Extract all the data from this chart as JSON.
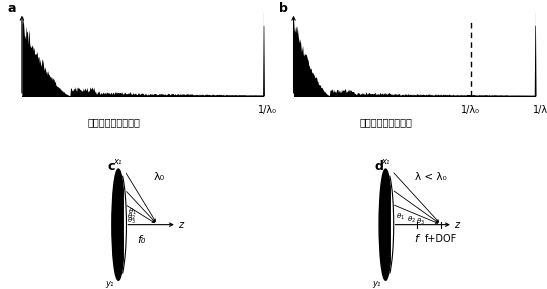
{
  "panel_a_label": "a",
  "panel_b_label": "b",
  "panel_c_label": "c",
  "panel_d_label": "d",
  "label_a_xlabel": "1/λ₀",
  "label_a_caption": "压缩前的归一化频道",
  "label_b_xlabel1": "1/λ₀",
  "label_b_xlabel2": "1/λ",
  "label_b_caption": "压缩后的归一化频道",
  "panel_c_lambda": "λ₀",
  "panel_c_f": "f₀",
  "panel_c_z": "z",
  "panel_c_x1": "x₁",
  "panel_c_y1": "y₁",
  "panel_d_lambda": "λ < λ₀",
  "panel_d_f": "f",
  "panel_d_fdof": "f+DOF",
  "panel_d_z": "z",
  "panel_d_x1": "x₁",
  "panel_d_y1": "y₁",
  "bg_color": "#ffffff",
  "black": "#000000"
}
